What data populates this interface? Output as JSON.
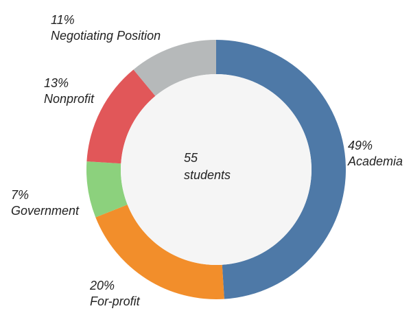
{
  "chart_data": {
    "type": "pie",
    "variant": "donut",
    "center": {
      "value": "55",
      "unit": "students"
    },
    "slices": [
      {
        "label": "Academia",
        "percent_label": "49%",
        "value": 49,
        "color": "#4e79a7"
      },
      {
        "label": "For-profit",
        "percent_label": "20%",
        "value": 20,
        "color": "#f28e2b"
      },
      {
        "label": "Government",
        "percent_label": "7%",
        "value": 7,
        "color": "#8cd17d"
      },
      {
        "label": "Nonprofit",
        "percent_label": "13%",
        "value": 13,
        "color": "#e15759"
      },
      {
        "label": "Negotiating Position",
        "percent_label": "11%",
        "value": 11,
        "color": "#b6b9ba"
      }
    ],
    "center_fill": "#f5f5f5",
    "legend": "none",
    "start_angle": "12 o'clock",
    "direction": "clockwise"
  }
}
